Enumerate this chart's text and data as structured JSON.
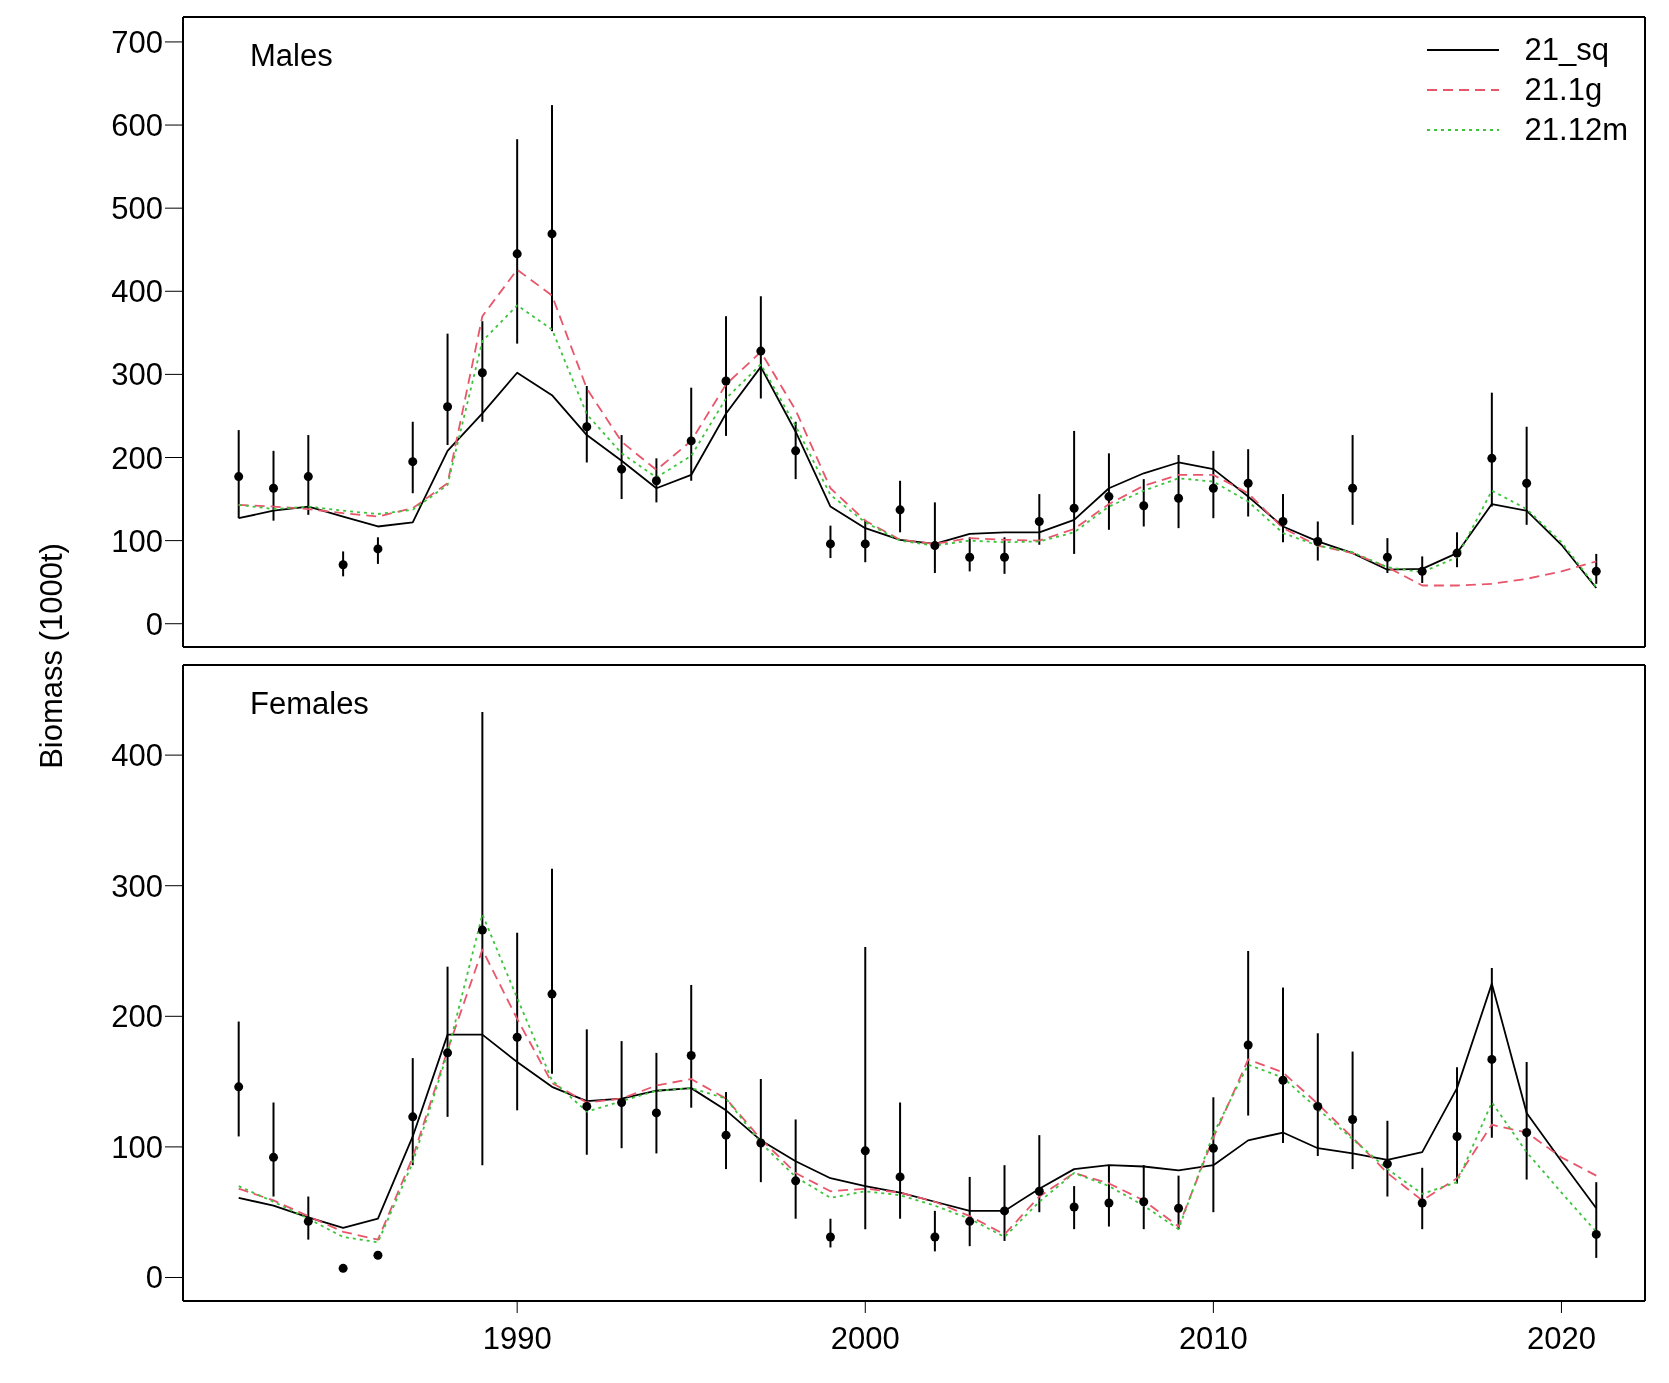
{
  "chart_data": [
    {
      "type": "line",
      "ylabel": "Biomass (1000t)",
      "annotations": [
        "Males"
      ],
      "xlim": [
        1980.4,
        2022.4
      ],
      "xticks": [
        1990,
        2000,
        2010,
        2020
      ],
      "ylim": [
        -28,
        730
      ],
      "yticks": [
        0,
        100,
        200,
        300,
        400,
        500,
        600,
        700
      ],
      "tick_labels": "y",
      "legend": "top right",
      "series": [
        {
          "type": "scatter",
          "color": "#000000",
          "marker": "circle",
          "x": [
            1982,
            1983,
            1984,
            1985,
            1986,
            1987,
            1988,
            1989,
            1990,
            1991,
            1992,
            1993,
            1994,
            1995,
            1996,
            1997,
            1998,
            1999,
            2000,
            2001,
            2002,
            2003,
            2004,
            2005,
            2006,
            2007,
            2008,
            2009,
            2010,
            2011,
            2012,
            2013,
            2014,
            2015,
            2016,
            2017,
            2018,
            2019,
            2021
          ],
          "values": [
            177,
            163,
            177,
            71,
            90,
            195,
            261,
            302,
            445,
            469,
            237,
            186,
            172,
            220,
            292,
            328,
            208,
            96,
            96,
            137,
            94,
            80,
            80,
            123,
            139,
            153,
            142,
            151,
            163,
            169,
            123,
            99,
            163,
            80,
            63,
            85,
            199,
            169,
            63
          ],
          "errors": [
            [
              127,
              233
            ],
            [
              124,
              208
            ],
            [
              131,
              227
            ],
            [
              57,
              87
            ],
            [
              72,
              104
            ],
            [
              157,
              243
            ],
            [
              215,
              349
            ],
            [
              243,
              364
            ],
            [
              337,
              583
            ],
            [
              352,
              624
            ],
            [
              194,
              286
            ],
            [
              150,
              227
            ],
            [
              146,
              199
            ],
            [
              172,
              284
            ],
            [
              226,
              370
            ],
            [
              271,
              394
            ],
            [
              174,
              243
            ],
            [
              79,
              118
            ],
            [
              74,
              125
            ],
            [
              110,
              172
            ],
            [
              61,
              146
            ],
            [
              63,
              104
            ],
            [
              60,
              104
            ],
            [
              95,
              156
            ],
            [
              84,
              232
            ],
            [
              113,
              205
            ],
            [
              117,
              174
            ],
            [
              115,
              203
            ],
            [
              127,
              208
            ],
            [
              129,
              210
            ],
            [
              98,
              156
            ],
            [
              76,
              123
            ],
            [
              119,
              227
            ],
            [
              61,
              103
            ],
            [
              49,
              81
            ],
            [
              68,
              110
            ],
            [
              141,
              278
            ],
            [
              119,
              237
            ],
            [
              48,
              84
            ]
          ]
        },
        {
          "name": "21_sq",
          "color": "#000000",
          "line_style": "solid",
          "x": [
            1982,
            1983,
            1984,
            1985,
            1986,
            1987,
            1988,
            1989,
            1990,
            1991,
            1992,
            1993,
            1994,
            1995,
            1996,
            1997,
            1998,
            1999,
            2000,
            2001,
            2002,
            2003,
            2004,
            2005,
            2006,
            2007,
            2008,
            2009,
            2010,
            2011,
            2012,
            2013,
            2014,
            2015,
            2016,
            2017,
            2018,
            2019,
            2020,
            2021
          ],
          "values": [
            127,
            136,
            141,
            129,
            117,
            122,
            208,
            253,
            302,
            275,
            227,
            196,
            163,
            179,
            253,
            309,
            231,
            141,
            115,
            101,
            96,
            108,
            110,
            110,
            125,
            163,
            181,
            194,
            186,
            153,
            117,
            99,
            85,
            65,
            66,
            85,
            144,
            136,
            95,
            43
          ]
        },
        {
          "name": "21.1g",
          "color": "#e8566b",
          "line_style": "dashed",
          "x": [
            1982,
            1983,
            1984,
            1985,
            1986,
            1987,
            1988,
            1989,
            1990,
            1991,
            1992,
            1993,
            1994,
            1995,
            1996,
            1997,
            1998,
            1999,
            2000,
            2001,
            2002,
            2003,
            2004,
            2005,
            2006,
            2007,
            2008,
            2009,
            2010,
            2011,
            2012,
            2013,
            2014,
            2015,
            2016,
            2017,
            2018,
            2019,
            2020,
            2021
          ],
          "values": [
            143,
            141,
            138,
            133,
            129,
            139,
            169,
            370,
            426,
            395,
            283,
            219,
            185,
            220,
            288,
            327,
            257,
            163,
            124,
            101,
            96,
            103,
            101,
            100,
            114,
            144,
            166,
            179,
            179,
            157,
            115,
            94,
            85,
            68,
            46,
            46,
            48,
            54,
            63,
            75
          ]
        },
        {
          "name": "21.12m",
          "color": "#3cc43c",
          "line_style": "dotted",
          "x": [
            1982,
            1983,
            1984,
            1985,
            1986,
            1987,
            1988,
            1989,
            1990,
            1991,
            1992,
            1993,
            1994,
            1995,
            1996,
            1997,
            1998,
            1999,
            2000,
            2001,
            2002,
            2003,
            2004,
            2005,
            2006,
            2007,
            2008,
            2009,
            2010,
            2011,
            2012,
            2013,
            2014,
            2015,
            2016,
            2017,
            2018,
            2019,
            2020,
            2021
          ],
          "values": [
            143,
            138,
            141,
            136,
            132,
            137,
            167,
            340,
            383,
            354,
            252,
            205,
            176,
            202,
            271,
            312,
            238,
            155,
            122,
            100,
            94,
            100,
            98,
            99,
            110,
            141,
            160,
            175,
            171,
            147,
            109,
            94,
            86,
            68,
            62,
            80,
            160,
            138,
            98,
            44
          ]
        }
      ]
    },
    {
      "type": "line",
      "annotations": [
        "Females"
      ],
      "xlim": [
        1980.4,
        2022.4
      ],
      "xticks": [
        1990,
        2000,
        2010,
        2020
      ],
      "ylim": [
        -18,
        469
      ],
      "yticks": [
        0,
        100,
        200,
        300,
        400
      ],
      "series": [
        {
          "type": "scatter",
          "color": "#000000",
          "marker": "circle",
          "x": [
            1982,
            1983,
            1984,
            1985,
            1986,
            1987,
            1988,
            1989,
            1990,
            1991,
            1992,
            1993,
            1994,
            1995,
            1996,
            1997,
            1998,
            1999,
            2000,
            2001,
            2002,
            2003,
            2004,
            2005,
            2006,
            2007,
            2008,
            2009,
            2010,
            2011,
            2012,
            2013,
            2014,
            2015,
            2016,
            2017,
            2018,
            2019,
            2021
          ],
          "values": [
            146,
            92,
            43,
            7,
            17,
            123,
            172,
            266,
            184,
            217,
            131,
            134,
            126,
            170,
            109,
            103,
            74,
            31,
            97,
            77,
            31,
            43,
            51,
            66,
            54,
            57,
            58,
            53,
            99,
            178,
            151,
            131,
            121,
            87,
            57,
            108,
            167,
            111,
            33
          ],
          "errors": [
            [
              108,
              196
            ],
            [
              62,
              134
            ],
            [
              29,
              62
            ],
            null,
            null,
            [
              86,
              168
            ],
            [
              123,
              238
            ],
            [
              86,
              433
            ],
            [
              128,
              264
            ],
            [
              156,
              313
            ],
            [
              94,
              190
            ],
            [
              99,
              181
            ],
            [
              95,
              172
            ],
            [
              130,
              224
            ],
            [
              83,
              142
            ],
            [
              73,
              152
            ],
            [
              45,
              121
            ],
            [
              23,
              45
            ],
            [
              37,
              253
            ],
            [
              45,
              134
            ],
            [
              20,
              51
            ],
            [
              24,
              77
            ],
            [
              28,
              86
            ],
            [
              50,
              109
            ],
            [
              37,
              70
            ],
            [
              39,
              86
            ],
            [
              37,
              86
            ],
            [
              37,
              78
            ],
            [
              50,
              138
            ],
            [
              124,
              250
            ],
            [
              103,
              222
            ],
            [
              93,
              187
            ],
            [
              83,
              173
            ],
            [
              62,
              120
            ],
            [
              37,
              84
            ],
            [
              72,
              161
            ],
            [
              107,
              237
            ],
            [
              75,
              165
            ],
            [
              15,
              73
            ]
          ]
        },
        {
          "color": "#000000",
          "line_style": "solid",
          "x": [
            1982,
            1983,
            1984,
            1985,
            1986,
            1987,
            1988,
            1989,
            1990,
            1991,
            1992,
            1993,
            1994,
            1995,
            1996,
            1997,
            1998,
            1999,
            2000,
            2001,
            2002,
            2003,
            2004,
            2005,
            2006,
            2007,
            2008,
            2009,
            2010,
            2011,
            2012,
            2013,
            2014,
            2015,
            2016,
            2017,
            2018,
            2019,
            2020,
            2021
          ],
          "values": [
            61,
            55,
            46,
            38,
            45,
            108,
            186,
            186,
            165,
            146,
            135,
            137,
            143,
            145,
            128,
            105,
            89,
            76,
            70,
            65,
            58,
            51,
            51,
            68,
            83,
            86,
            85,
            82,
            86,
            105,
            111,
            99,
            95,
            90,
            96,
            145,
            225,
            126,
            89,
            53
          ]
        },
        {
          "color": "#e8566b",
          "line_style": "dashed",
          "x": [
            1982,
            1983,
            1984,
            1985,
            1986,
            1987,
            1988,
            1989,
            1990,
            1991,
            1992,
            1993,
            1994,
            1995,
            1996,
            1997,
            1998,
            1999,
            2000,
            2001,
            2002,
            2003,
            2004,
            2005,
            2006,
            2007,
            2008,
            2009,
            2010,
            2011,
            2012,
            2013,
            2014,
            2015,
            2016,
            2017,
            2018,
            2019,
            2020,
            2021
          ],
          "values": [
            68,
            59,
            47,
            35,
            29,
            92,
            174,
            251,
            198,
            149,
            134,
            137,
            147,
            152,
            137,
            106,
            80,
            66,
            68,
            65,
            58,
            47,
            33,
            62,
            80,
            72,
            59,
            39,
            107,
            167,
            157,
            133,
            107,
            80,
            59,
            76,
            117,
            111,
            92,
            78
          ]
        },
        {
          "color": "#3cc43c",
          "line_style": "dotted",
          "x": [
            1982,
            1983,
            1984,
            1985,
            1986,
            1987,
            1988,
            1989,
            1990,
            1991,
            1992,
            1993,
            1994,
            1995,
            1996,
            1997,
            1998,
            1999,
            2000,
            2001,
            2002,
            2003,
            2004,
            2005,
            2006,
            2007,
            2008,
            2009,
            2010,
            2011,
            2012,
            2013,
            2014,
            2015,
            2016,
            2017,
            2018,
            2019,
            2020,
            2021
          ],
          "values": [
            70,
            58,
            45,
            31,
            27,
            88,
            172,
            278,
            214,
            151,
            127,
            135,
            143,
            145,
            137,
            103,
            77,
            61,
            66,
            63,
            55,
            45,
            31,
            58,
            80,
            70,
            55,
            37,
            110,
            163,
            153,
            129,
            106,
            83,
            64,
            73,
            134,
            96,
            65,
            35
          ]
        }
      ]
    }
  ]
}
